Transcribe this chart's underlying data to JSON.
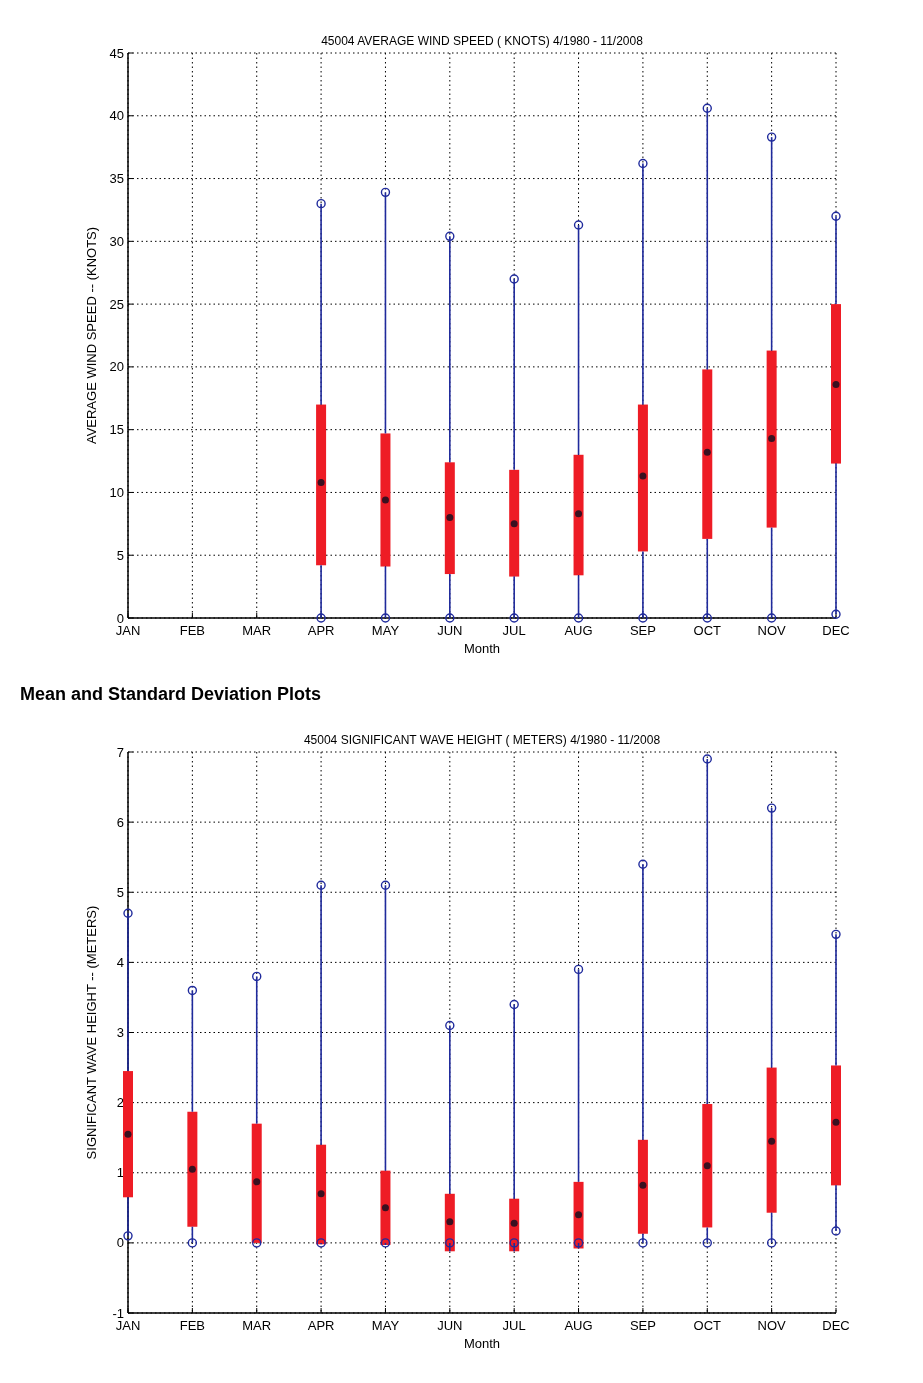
{
  "chart_data": [
    {
      "type": "box",
      "title": "45004  AVERAGE WIND SPEED ( KNOTS) 4/1980 - 11/2008",
      "xlabel": "Month",
      "ylabel": "AVERAGE WIND SPEED -- (KNOTS)",
      "categories": [
        "JAN",
        "FEB",
        "MAR",
        "APR",
        "MAY",
        "JUN",
        "JUL",
        "AUG",
        "SEP",
        "OCT",
        "NOV",
        "DEC"
      ],
      "ylim": [
        0,
        45
      ],
      "yticks": [
        0,
        5,
        10,
        15,
        20,
        25,
        30,
        35,
        40,
        45
      ],
      "grid": true,
      "marker": "circle",
      "series": [
        {
          "color": "#ee1c25",
          "boxes": [
            null,
            null,
            null,
            {
              "low": 0,
              "q1": 4.2,
              "median": 10.8,
              "q3": 17,
              "high": 33
            },
            {
              "low": 0,
              "q1": 4.1,
              "median": 9.4,
              "q3": 14.7,
              "high": 33.9
            },
            {
              "low": 0,
              "q1": 3.5,
              "median": 8,
              "q3": 12.4,
              "high": 30.4
            },
            {
              "low": 0,
              "q1": 3.3,
              "median": 7.5,
              "q3": 11.8,
              "high": 27
            },
            {
              "low": 0,
              "q1": 3.4,
              "median": 8.3,
              "q3": 13,
              "high": 31.3
            },
            {
              "low": 0,
              "q1": 5.3,
              "median": 11.3,
              "q3": 17,
              "high": 36.2
            },
            {
              "low": 0,
              "q1": 6.3,
              "median": 13.2,
              "q3": 19.8,
              "high": 40.6
            },
            {
              "low": 0,
              "q1": 7.2,
              "median": 14.3,
              "q3": 21.3,
              "high": 38.3
            },
            {
              "low": 0.3,
              "q1": 12.3,
              "median": 18.6,
              "q3": 25,
              "high": 32
            }
          ]
        }
      ]
    },
    {
      "type": "box",
      "title": "45004  SIGNIFICANT WAVE HEIGHT ( METERS) 4/1980 - 11/2008",
      "xlabel": "Month",
      "ylabel": "SIGNIFICANT WAVE HEIGHT -- (METERS)",
      "annotations": [
        "Mean and Standard Deviation Plots"
      ],
      "categories": [
        "JAN",
        "FEB",
        "MAR",
        "APR",
        "MAY",
        "JUN",
        "JUL",
        "AUG",
        "SEP",
        "OCT",
        "NOV",
        "DEC"
      ],
      "ylim": [
        -1,
        7
      ],
      "yticks": [
        -1,
        0,
        1,
        2,
        3,
        4,
        5,
        6,
        7
      ],
      "grid": true,
      "marker": "circle",
      "series": [
        {
          "color": "#ee1c25",
          "boxes": [
            {
              "low": 0.1,
              "q1": 0.65,
              "median": 1.55,
              "q3": 2.45,
              "high": 4.7
            },
            {
              "low": 0,
              "q1": 0.23,
              "median": 1.05,
              "q3": 1.87,
              "high": 3.6
            },
            {
              "low": 0,
              "q1": 0,
              "median": 0.87,
              "q3": 1.7,
              "high": 3.8
            },
            {
              "low": 0,
              "q1": -0.02,
              "median": 0.7,
              "q3": 1.4,
              "high": 5.1
            },
            {
              "low": 0,
              "q1": -0.03,
              "median": 0.5,
              "q3": 1.03,
              "high": 5.1
            },
            {
              "low": 0,
              "q1": -0.12,
              "median": 0.3,
              "q3": 0.7,
              "high": 3.1
            },
            {
              "low": 0,
              "q1": -0.12,
              "median": 0.28,
              "q3": 0.63,
              "high": 3.4
            },
            {
              "low": 0,
              "q1": -0.08,
              "median": 0.4,
              "q3": 0.87,
              "high": 3.9
            },
            {
              "low": 0,
              "q1": 0.13,
              "median": 0.82,
              "q3": 1.47,
              "high": 5.4
            },
            {
              "low": 0,
              "q1": 0.22,
              "median": 1.1,
              "q3": 1.98,
              "high": 6.9
            },
            {
              "low": 0,
              "q1": 0.43,
              "median": 1.45,
              "q3": 2.5,
              "high": 6.2
            },
            {
              "low": 0.17,
              "q1": 0.82,
              "median": 1.72,
              "q3": 2.53,
              "high": 4.4
            }
          ]
        }
      ]
    }
  ]
}
